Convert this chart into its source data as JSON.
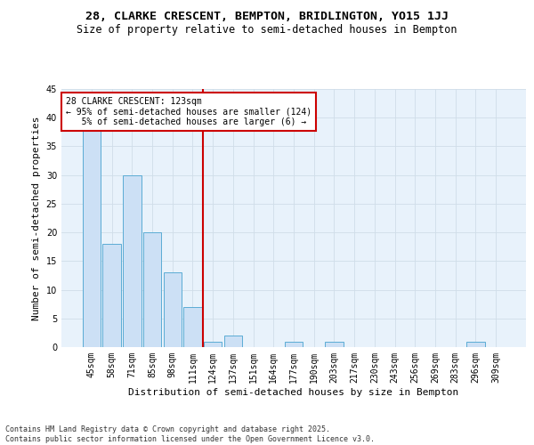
{
  "title": "28, CLARKE CRESCENT, BEMPTON, BRIDLINGTON, YO15 1JJ",
  "subtitle": "Size of property relative to semi-detached houses in Bempton",
  "xlabel": "Distribution of semi-detached houses by size in Bempton",
  "ylabel": "Number of semi-detached properties",
  "categories": [
    "45sqm",
    "58sqm",
    "71sqm",
    "85sqm",
    "98sqm",
    "111sqm",
    "124sqm",
    "137sqm",
    "151sqm",
    "164sqm",
    "177sqm",
    "190sqm",
    "203sqm",
    "217sqm",
    "230sqm",
    "243sqm",
    "256sqm",
    "269sqm",
    "283sqm",
    "296sqm",
    "309sqm"
  ],
  "values": [
    38,
    18,
    30,
    20,
    13,
    7,
    1,
    2,
    0,
    0,
    1,
    0,
    1,
    0,
    0,
    0,
    0,
    0,
    0,
    1,
    0
  ],
  "bar_color": "#cce0f5",
  "bar_edge_color": "#5bacd4",
  "vline_x_index": 6,
  "vline_color": "#cc0000",
  "annotation_text": "28 CLARKE CRESCENT: 123sqm\n← 95% of semi-detached houses are smaller (124)\n   5% of semi-detached houses are larger (6) →",
  "annotation_box_color": "#ffffff",
  "annotation_box_edge": "#cc0000",
  "ylim": [
    0,
    45
  ],
  "yticks": [
    0,
    5,
    10,
    15,
    20,
    25,
    30,
    35,
    40,
    45
  ],
  "grid_color": "#d0dde8",
  "background_color": "#e8f2fb",
  "footer_line1": "Contains HM Land Registry data © Crown copyright and database right 2025.",
  "footer_line2": "Contains public sector information licensed under the Open Government Licence v3.0.",
  "title_fontsize": 9.5,
  "subtitle_fontsize": 8.5,
  "axis_label_fontsize": 8,
  "tick_fontsize": 7,
  "annotation_fontsize": 7,
  "footer_fontsize": 6
}
